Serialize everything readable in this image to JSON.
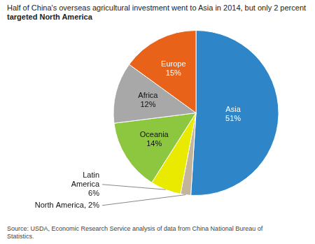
{
  "chart_data": {
    "type": "pie",
    "title": "Half of China's overseas agricultural investment went to Asia in 2014, but only 2 percent",
    "subtitle": "targeted North America",
    "source": "Source: USDA, Economic Research Service analysis of data from China National Bureau of\nStatistics.",
    "categories": [
      "Asia",
      "North America",
      "Latin America",
      "Oceania",
      "Africa",
      "Europe"
    ],
    "values": [
      51,
      2,
      6,
      14,
      12,
      15
    ],
    "value_labels": [
      "Asia\n51%",
      "North America, 2%",
      "Latin\nAmerica\n6%",
      "Oceania\n14%",
      "Africa\n12%",
      "Europe\n15%"
    ],
    "colors": [
      "#2E86C8",
      "#C4B49A",
      "#EAEA00",
      "#8DC63F",
      "#A8A8A8",
      "#E8621A"
    ],
    "data_labels": true,
    "legend": false
  }
}
